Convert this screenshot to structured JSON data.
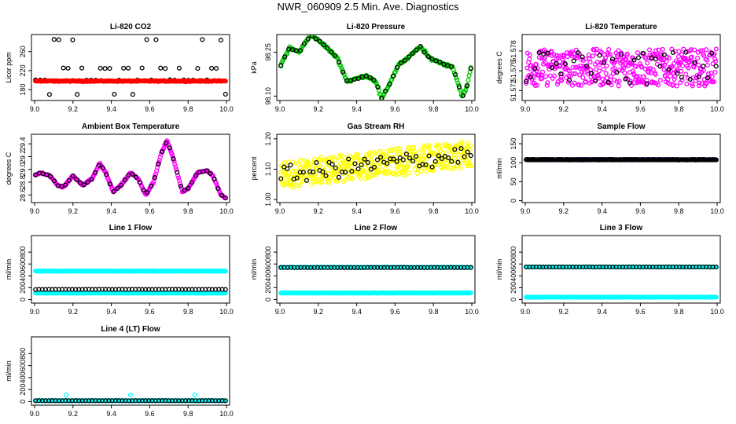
{
  "page_title": "NWR_060909  2.5 Min. Ave. Diagnostics",
  "colors": {
    "black": "#000000",
    "red": "#ff0000",
    "green": "#00c800",
    "magenta": "#ff00ff",
    "yellow": "#ffff00",
    "cyan": "#00ffff",
    "blue": "#0000ff"
  },
  "chart_data": [
    {
      "id": "co2",
      "type": "scatter",
      "title": "Li-820 CO2",
      "ylabel": "Licor ppm",
      "xlim": [
        9.0,
        10.0
      ],
      "ylim": [
        157,
        296
      ],
      "xticks": [
        "9.0",
        "9.2",
        "9.4",
        "9.6",
        "9.8",
        "10.0"
      ],
      "yticks": [
        "180",
        "220",
        "260"
      ],
      "series": [
        {
          "name": "black-circles",
          "color": "black",
          "pattern": "levels",
          "levels": [
            285,
            225,
            200,
            170
          ],
          "n": 42
        },
        {
          "name": "red-dense",
          "color": "red",
          "pattern": "flat",
          "base": 198,
          "amp": 1.5,
          "n": 260
        }
      ]
    },
    {
      "id": "pressure",
      "type": "scatter",
      "title": "Li-820 Pressure",
      "ylabel": "kPa",
      "xlim": [
        9.0,
        10.0
      ],
      "ylim": [
        98.085,
        98.31
      ],
      "xticks": [
        "9.0",
        "9.2",
        "9.4",
        "9.6",
        "9.8",
        "10.0"
      ],
      "yticks": [
        "98.10",
        "98.25"
      ],
      "series": [
        {
          "name": "green",
          "color": "green",
          "pattern": "curve",
          "anchors": [
            [
              9.0,
              98.2
            ],
            [
              9.05,
              98.265
            ],
            [
              9.1,
              98.25
            ],
            [
              9.16,
              98.31
            ],
            [
              9.22,
              98.28
            ],
            [
              9.3,
              98.23
            ],
            [
              9.35,
              98.15
            ],
            [
              9.4,
              98.16
            ],
            [
              9.45,
              98.17
            ],
            [
              9.5,
              98.15
            ],
            [
              9.53,
              98.09
            ],
            [
              9.57,
              98.14
            ],
            [
              9.62,
              98.21
            ],
            [
              9.65,
              98.22
            ],
            [
              9.7,
              98.25
            ],
            [
              9.73,
              98.27
            ],
            [
              9.78,
              98.23
            ],
            [
              9.85,
              98.21
            ],
            [
              9.9,
              98.2
            ],
            [
              9.95,
              98.1
            ],
            [
              9.97,
              98.12
            ],
            [
              10.0,
              98.21
            ]
          ],
          "noise": 0.006,
          "n": 220
        },
        {
          "name": "black",
          "color": "black",
          "pattern": "curve-follow",
          "follow": 0,
          "noise": 0.004,
          "n": 50
        }
      ]
    },
    {
      "id": "temperature",
      "type": "scatter",
      "title": "Li-820 Temperature",
      "ylabel": "degrees C",
      "xlim": [
        9.0,
        10.0
      ],
      "ylim": [
        51.5705,
        51.5805
      ],
      "xticks": [
        "9.0",
        "9.2",
        "9.4",
        "9.6",
        "9.8",
        "10.0"
      ],
      "yticks": [
        "51.572",
        "51.575",
        "51.578"
      ],
      "series": [
        {
          "name": "magenta",
          "color": "magenta",
          "pattern": "noise",
          "base": 51.5755,
          "amp": 0.0028,
          "n": 420
        },
        {
          "name": "black",
          "color": "black",
          "pattern": "noise",
          "base": 51.5755,
          "amp": 0.0025,
          "n": 45
        }
      ]
    },
    {
      "id": "ambient",
      "type": "scatter",
      "title": "Ambient Box Temperature",
      "ylabel": "degrees C",
      "xlim": [
        9.0,
        10.0
      ],
      "ylim": [
        28.48,
        29.55
      ],
      "xticks": [
        "9.0",
        "9.2",
        "9.4",
        "9.6",
        "9.8",
        "10.0"
      ],
      "yticks": [
        "28.6",
        "28.8",
        "29.0",
        "29.2",
        "29.4"
      ],
      "series": [
        {
          "name": "magenta",
          "color": "magenta",
          "pattern": "curve",
          "anchors": [
            [
              9.0,
              28.9
            ],
            [
              9.03,
              28.95
            ],
            [
              9.08,
              28.9
            ],
            [
              9.12,
              28.75
            ],
            [
              9.15,
              28.72
            ],
            [
              9.2,
              28.9
            ],
            [
              9.25,
              28.75
            ],
            [
              9.3,
              28.85
            ],
            [
              9.34,
              29.1
            ],
            [
              9.37,
              28.95
            ],
            [
              9.41,
              28.65
            ],
            [
              9.45,
              28.75
            ],
            [
              9.5,
              28.95
            ],
            [
              9.54,
              28.85
            ],
            [
              9.58,
              28.6
            ],
            [
              9.62,
              28.8
            ],
            [
              9.66,
              29.25
            ],
            [
              9.69,
              29.45
            ],
            [
              9.72,
              29.2
            ],
            [
              9.77,
              28.65
            ],
            [
              9.8,
              28.7
            ],
            [
              9.85,
              28.95
            ],
            [
              9.9,
              28.98
            ],
            [
              9.93,
              28.9
            ],
            [
              9.97,
              28.6
            ],
            [
              10.0,
              28.55
            ]
          ],
          "noise": 0.015,
          "n": 260
        },
        {
          "name": "black",
          "color": "black",
          "pattern": "curve-follow",
          "follow": 0,
          "noise": 0.01,
          "n": 52
        }
      ]
    },
    {
      "id": "rh",
      "type": "scatter",
      "title": "Gas Stream RH",
      "ylabel": "percent",
      "xlim": [
        9.0,
        10.0
      ],
      "ylim": [
        0.99,
        1.215
      ],
      "xticks": [
        "9.0",
        "9.2",
        "9.4",
        "9.6",
        "9.8",
        "10.0"
      ],
      "yticks": [
        "1.00",
        "1.10",
        "1.20"
      ],
      "series": [
        {
          "name": "yellow",
          "color": "yellow",
          "pattern": "trend",
          "start": 1.08,
          "end": 1.15,
          "amp": 0.045,
          "n": 430
        },
        {
          "name": "black",
          "color": "black",
          "pattern": "trend",
          "start": 1.08,
          "end": 1.15,
          "amp": 0.03,
          "n": 60
        }
      ]
    },
    {
      "id": "sample_flow",
      "type": "scatter",
      "title": "Sample Flow",
      "ylabel": "ml/min",
      "xlim": [
        9.0,
        10.0
      ],
      "ylim": [
        -5,
        175
      ],
      "xticks": [
        "9.0",
        "9.2",
        "9.4",
        "9.6",
        "9.8",
        "10.0"
      ],
      "yticks": [
        "0",
        "50",
        "100",
        "150"
      ],
      "series": [
        {
          "name": "navy",
          "color": "blue",
          "pattern": "flat",
          "base": 108,
          "amp": 1,
          "n": 260
        },
        {
          "name": "black",
          "color": "black",
          "pattern": "flat",
          "base": 108,
          "amp": 1,
          "n": 260
        }
      ]
    },
    {
      "id": "line1",
      "type": "scatter",
      "title": "Line 1 Flow",
      "ylabel": "ml/min",
      "xlim": [
        9.0,
        10.0
      ],
      "ylim": [
        -60,
        1080
      ],
      "xticks": [
        "9.0",
        "9.2",
        "9.4",
        "9.6",
        "9.8",
        "10.0"
      ],
      "yticks": [
        "0",
        "200",
        "400",
        "600",
        "800"
      ],
      "series": [
        {
          "name": "cyan-high",
          "color": "cyan",
          "pattern": "flat",
          "base": 480,
          "amp": 3,
          "n": 240
        },
        {
          "name": "cyan-low",
          "color": "cyan",
          "pattern": "flat",
          "base": 110,
          "amp": 3,
          "n": 240
        },
        {
          "name": "black",
          "color": "black",
          "pattern": "flat",
          "base": 170,
          "amp": 2,
          "n": 58
        }
      ]
    },
    {
      "id": "line2",
      "type": "scatter",
      "title": "Line 2 Flow",
      "ylabel": "ml/min",
      "xlim": [
        9.0,
        10.0
      ],
      "ylim": [
        -60,
        1080
      ],
      "xticks": [
        "9.0",
        "9.2",
        "9.4",
        "9.6",
        "9.8",
        "10.0"
      ],
      "yticks": [
        "0",
        "200",
        "400",
        "600",
        "800"
      ],
      "series": [
        {
          "name": "cyan-high",
          "color": "cyan",
          "pattern": "flat",
          "base": 545,
          "amp": 3,
          "n": 240
        },
        {
          "name": "cyan-low",
          "color": "cyan",
          "pattern": "flat",
          "base": 110,
          "amp": 3,
          "n": 240
        },
        {
          "name": "black",
          "color": "black",
          "pattern": "flat",
          "base": 540,
          "amp": 2,
          "n": 58
        }
      ]
    },
    {
      "id": "line3",
      "type": "scatter",
      "title": "Line 3 Flow",
      "ylabel": "ml/min",
      "xlim": [
        9.0,
        10.0
      ],
      "ylim": [
        -60,
        1080
      ],
      "xticks": [
        "9.0",
        "9.2",
        "9.4",
        "9.6",
        "9.8",
        "10.0"
      ],
      "yticks": [
        "0",
        "200",
        "400",
        "600",
        "800"
      ],
      "series": [
        {
          "name": "cyan-high",
          "color": "cyan",
          "pattern": "flat",
          "base": 550,
          "amp": 3,
          "n": 240
        },
        {
          "name": "cyan-low",
          "color": "cyan",
          "pattern": "flat",
          "base": 40,
          "amp": 3,
          "n": 240
        },
        {
          "name": "black",
          "color": "black",
          "pattern": "flat",
          "base": 550,
          "amp": 2,
          "n": 58
        }
      ]
    },
    {
      "id": "line4",
      "type": "scatter",
      "title": "Line 4 (LT) Flow",
      "ylabel": "ml/min",
      "xlim": [
        9.0,
        10.0
      ],
      "ylim": [
        -60,
        1080
      ],
      "xticks": [
        "9.0",
        "9.2",
        "9.4",
        "9.6",
        "9.8",
        "10.0"
      ],
      "yticks": [
        "0",
        "200",
        "400",
        "600",
        "800"
      ],
      "series": [
        {
          "name": "cyan",
          "color": "cyan",
          "pattern": "flat",
          "base": 15,
          "amp": 2,
          "n": 240
        },
        {
          "name": "cyan-spikes",
          "color": "cyan",
          "pattern": "points",
          "points": [
            [
              9.165,
              110
            ],
            [
              9.5,
              110
            ],
            [
              9.835,
              110
            ]
          ]
        },
        {
          "name": "black",
          "color": "black",
          "pattern": "flat",
          "base": 15,
          "amp": 2,
          "n": 58
        }
      ]
    }
  ]
}
